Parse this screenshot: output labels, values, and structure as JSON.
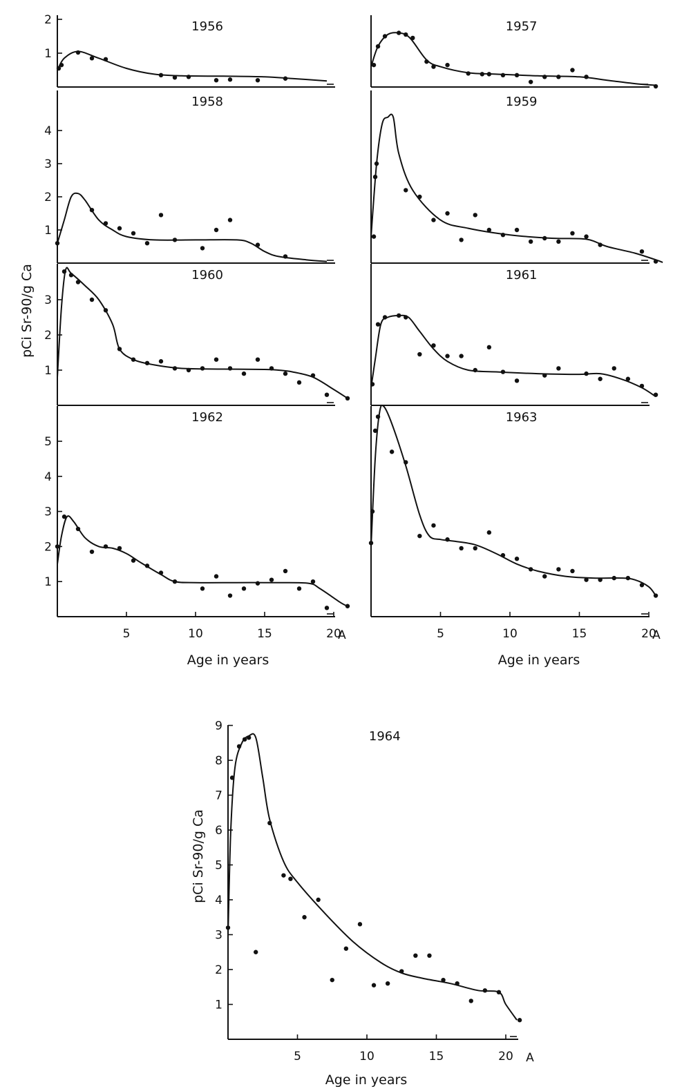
{
  "figure": {
    "ylabel": "pCi Sr-90/g Ca",
    "xlabel": "Age in years",
    "x_ticks": [
      5,
      10,
      15,
      20
    ],
    "x_end_label": "A"
  },
  "chart_data": [
    {
      "type": "line",
      "title": "1956",
      "xlim": [
        0,
        22
      ],
      "ylim": [
        0,
        2
      ],
      "y_ticks": [
        1,
        2
      ],
      "curve": [
        [
          0,
          0.5
        ],
        [
          0.5,
          0.85
        ],
        [
          1.5,
          1.05
        ],
        [
          3,
          0.85
        ],
        [
          5,
          0.55
        ],
        [
          7,
          0.38
        ],
        [
          9,
          0.33
        ],
        [
          12,
          0.32
        ],
        [
          15,
          0.3
        ],
        [
          17,
          0.25
        ],
        [
          19.5,
          0.18
        ]
      ],
      "points": [
        [
          0.1,
          0.55
        ],
        [
          0.3,
          0.65
        ],
        [
          1.5,
          1.02
        ],
        [
          2.5,
          0.85
        ],
        [
          3.5,
          0.82
        ],
        [
          7.5,
          0.35
        ],
        [
          8.5,
          0.28
        ],
        [
          9.5,
          0.3
        ],
        [
          11.5,
          0.2
        ],
        [
          12.5,
          0.22
        ],
        [
          14.5,
          0.2
        ],
        [
          16.5,
          0.25
        ]
      ]
    },
    {
      "type": "line",
      "title": "1957",
      "xlim": [
        0,
        22
      ],
      "ylim": [
        0,
        2
      ],
      "y_ticks": [],
      "curve": [
        [
          0,
          0.6
        ],
        [
          0.5,
          1.2
        ],
        [
          1.2,
          1.55
        ],
        [
          2,
          1.6
        ],
        [
          2.8,
          1.45
        ],
        [
          4,
          0.8
        ],
        [
          5,
          0.6
        ],
        [
          7,
          0.42
        ],
        [
          9,
          0.38
        ],
        [
          12,
          0.33
        ],
        [
          15,
          0.3
        ],
        [
          17,
          0.2
        ],
        [
          19,
          0.1
        ],
        [
          20.5,
          0.05
        ]
      ],
      "points": [
        [
          0.2,
          0.65
        ],
        [
          0.5,
          1.2
        ],
        [
          1,
          1.5
        ],
        [
          2,
          1.6
        ],
        [
          2.5,
          1.55
        ],
        [
          3,
          1.45
        ],
        [
          4,
          0.75
        ],
        [
          4.5,
          0.6
        ],
        [
          5.5,
          0.65
        ],
        [
          7,
          0.4
        ],
        [
          8,
          0.38
        ],
        [
          8.5,
          0.38
        ],
        [
          9.5,
          0.35
        ],
        [
          10.5,
          0.35
        ],
        [
          11.5,
          0.15
        ],
        [
          12.5,
          0.3
        ],
        [
          13.5,
          0.3
        ],
        [
          14.5,
          0.5
        ],
        [
          15.5,
          0.3
        ],
        [
          20.5,
          0.02
        ]
      ]
    },
    {
      "type": "line",
      "title": "1958",
      "xlim": [
        0,
        22
      ],
      "ylim": [
        0,
        5
      ],
      "y_ticks": [
        1,
        2,
        3,
        4
      ],
      "curve": [
        [
          0,
          0.6
        ],
        [
          0.5,
          1.3
        ],
        [
          1,
          2
        ],
        [
          1.5,
          2.1
        ],
        [
          2,
          1.9
        ],
        [
          3,
          1.3
        ],
        [
          4,
          1
        ],
        [
          5,
          0.8
        ],
        [
          7,
          0.7
        ],
        [
          10,
          0.7
        ],
        [
          13,
          0.7
        ],
        [
          14,
          0.6
        ],
        [
          15,
          0.35
        ],
        [
          16,
          0.2
        ],
        [
          18,
          0.1
        ],
        [
          19.5,
          0.05
        ]
      ],
      "points": [
        [
          0,
          0.6
        ],
        [
          2.5,
          1.6
        ],
        [
          3.5,
          1.2
        ],
        [
          4.5,
          1.05
        ],
        [
          5.5,
          0.9
        ],
        [
          6.5,
          0.6
        ],
        [
          7.5,
          1.45
        ],
        [
          8.5,
          0.7
        ],
        [
          10.5,
          0.45
        ],
        [
          11.5,
          1
        ],
        [
          12.5,
          1.3
        ],
        [
          14.5,
          0.55
        ],
        [
          16.5,
          0.2
        ]
      ]
    },
    {
      "type": "line",
      "title": "1959",
      "xlim": [
        0,
        22
      ],
      "ylim": [
        0,
        5
      ],
      "y_ticks": [],
      "curve": [
        [
          0,
          0.8
        ],
        [
          0.4,
          3
        ],
        [
          0.8,
          4.2
        ],
        [
          1.2,
          4.4
        ],
        [
          1.6,
          4.4
        ],
        [
          2,
          3.3
        ],
        [
          3,
          2.2
        ],
        [
          5,
          1.3
        ],
        [
          7,
          1.05
        ],
        [
          10,
          0.85
        ],
        [
          13,
          0.75
        ],
        [
          15.5,
          0.72
        ],
        [
          17,
          0.5
        ],
        [
          19,
          0.3
        ],
        [
          20.5,
          0.1
        ],
        [
          21,
          0.02
        ]
      ],
      "points": [
        [
          0.2,
          0.8
        ],
        [
          0.3,
          2.6
        ],
        [
          0.4,
          3
        ],
        [
          2.5,
          2.2
        ],
        [
          3.5,
          2
        ],
        [
          4.5,
          1.3
        ],
        [
          5.5,
          1.5
        ],
        [
          6.5,
          0.7
        ],
        [
          7.5,
          1.45
        ],
        [
          8.5,
          1
        ],
        [
          9.5,
          0.85
        ],
        [
          10.5,
          1
        ],
        [
          11.5,
          0.65
        ],
        [
          12.5,
          0.75
        ],
        [
          13.5,
          0.65
        ],
        [
          14.5,
          0.9
        ],
        [
          15.5,
          0.8
        ],
        [
          16.5,
          0.55
        ],
        [
          19.5,
          0.35
        ],
        [
          20.5,
          0.05
        ]
      ]
    },
    {
      "type": "line",
      "title": "1960",
      "xlim": [
        0,
        22
      ],
      "ylim": [
        0,
        4
      ],
      "y_ticks": [
        1,
        2,
        3
      ],
      "curve": [
        [
          0,
          0.8
        ],
        [
          0.3,
          2.8
        ],
        [
          0.6,
          3.85
        ],
        [
          1,
          3.75
        ],
        [
          2,
          3.4
        ],
        [
          3,
          3
        ],
        [
          4,
          2.3
        ],
        [
          4.5,
          1.6
        ],
        [
          5.5,
          1.3
        ],
        [
          7,
          1.15
        ],
        [
          9,
          1.05
        ],
        [
          12,
          1.03
        ],
        [
          15,
          1.02
        ],
        [
          16,
          1
        ],
        [
          17,
          0.95
        ],
        [
          18.5,
          0.8
        ],
        [
          20,
          0.45
        ],
        [
          21,
          0.2
        ]
      ],
      "points": [
        [
          0.5,
          3.8
        ],
        [
          1,
          3.7
        ],
        [
          1.5,
          3.5
        ],
        [
          2.5,
          3
        ],
        [
          3.5,
          2.7
        ],
        [
          4.5,
          1.6
        ],
        [
          5.5,
          1.3
        ],
        [
          6.5,
          1.2
        ],
        [
          7.5,
          1.25
        ],
        [
          8.5,
          1.05
        ],
        [
          9.5,
          1
        ],
        [
          10.5,
          1.05
        ],
        [
          11.5,
          1.3
        ],
        [
          12.5,
          1.05
        ],
        [
          13.5,
          0.9
        ],
        [
          14.5,
          1.3
        ],
        [
          15.5,
          1.05
        ],
        [
          16.5,
          0.9
        ],
        [
          17.5,
          0.65
        ],
        [
          18.5,
          0.85
        ],
        [
          19.5,
          0.3
        ],
        [
          21,
          0.2
        ]
      ]
    },
    {
      "type": "line",
      "title": "1961",
      "xlim": [
        0,
        22
      ],
      "ylim": [
        0,
        4
      ],
      "y_ticks": [],
      "curve": [
        [
          0,
          0.5
        ],
        [
          0.3,
          1.3
        ],
        [
          0.7,
          2.3
        ],
        [
          1.2,
          2.5
        ],
        [
          2,
          2.55
        ],
        [
          2.7,
          2.5
        ],
        [
          3.5,
          2.1
        ],
        [
          4.5,
          1.6
        ],
        [
          5.5,
          1.25
        ],
        [
          7,
          1
        ],
        [
          9,
          0.95
        ],
        [
          12,
          0.9
        ],
        [
          15,
          0.88
        ],
        [
          16.5,
          0.9
        ],
        [
          18,
          0.75
        ],
        [
          19.5,
          0.5
        ],
        [
          20.5,
          0.25
        ]
      ],
      "points": [
        [
          0.1,
          0.6
        ],
        [
          0.5,
          2.3
        ],
        [
          1,
          2.5
        ],
        [
          2,
          2.55
        ],
        [
          2.5,
          2.5
        ],
        [
          3.5,
          1.45
        ],
        [
          4.5,
          1.7
        ],
        [
          5.5,
          1.4
        ],
        [
          6.5,
          1.4
        ],
        [
          7.5,
          1
        ],
        [
          8.5,
          1.65
        ],
        [
          9.5,
          0.95
        ],
        [
          10.5,
          0.7
        ],
        [
          12.5,
          0.85
        ],
        [
          13.5,
          1.05
        ],
        [
          15.5,
          0.9
        ],
        [
          16.5,
          0.75
        ],
        [
          17.5,
          1.05
        ],
        [
          18.5,
          0.75
        ],
        [
          19.5,
          0.55
        ],
        [
          20.5,
          0.3
        ]
      ]
    },
    {
      "type": "line",
      "title": "1962",
      "xlim": [
        0,
        22
      ],
      "ylim": [
        0,
        6
      ],
      "y_ticks": [
        1,
        2,
        3,
        4,
        5
      ],
      "curve": [
        [
          0,
          1.5
        ],
        [
          0.3,
          2.3
        ],
        [
          0.7,
          2.85
        ],
        [
          1.2,
          2.7
        ],
        [
          2,
          2.25
        ],
        [
          3,
          2
        ],
        [
          4,
          1.95
        ],
        [
          5,
          1.8
        ],
        [
          6,
          1.55
        ],
        [
          7.5,
          1.2
        ],
        [
          8.5,
          1
        ],
        [
          10,
          0.97
        ],
        [
          13,
          0.97
        ],
        [
          16,
          0.97
        ],
        [
          18.2,
          0.95
        ],
        [
          19,
          0.8
        ],
        [
          20.5,
          0.4
        ],
        [
          21,
          0.3
        ]
      ],
      "points": [
        [
          0,
          2
        ],
        [
          0.5,
          2.85
        ],
        [
          1.5,
          2.5
        ],
        [
          2.5,
          1.85
        ],
        [
          3.5,
          2
        ],
        [
          4.5,
          1.95
        ],
        [
          5.5,
          1.6
        ],
        [
          6.5,
          1.45
        ],
        [
          7.5,
          1.25
        ],
        [
          8.5,
          1
        ],
        [
          10.5,
          0.8
        ],
        [
          11.5,
          1.15
        ],
        [
          12.5,
          0.6
        ],
        [
          13.5,
          0.8
        ],
        [
          14.5,
          0.95
        ],
        [
          15.5,
          1.05
        ],
        [
          16.5,
          1.3
        ],
        [
          17.5,
          0.8
        ],
        [
          18.5,
          1
        ],
        [
          19.5,
          0.25
        ],
        [
          21,
          0.3
        ]
      ]
    },
    {
      "type": "line",
      "title": "1963",
      "xlim": [
        0,
        22
      ],
      "ylim": [
        0,
        6
      ],
      "y_ticks": [],
      "curve": [
        [
          0,
          2
        ],
        [
          0.3,
          4.5
        ],
        [
          0.6,
          5.8
        ],
        [
          0.9,
          6
        ],
        [
          1.5,
          5.5
        ],
        [
          2.5,
          4.3
        ],
        [
          3.5,
          2.9
        ],
        [
          4.2,
          2.3
        ],
        [
          5,
          2.2
        ],
        [
          6,
          2.15
        ],
        [
          7.5,
          2.05
        ],
        [
          9,
          1.8
        ],
        [
          10.5,
          1.5
        ],
        [
          12,
          1.3
        ],
        [
          14,
          1.15
        ],
        [
          16,
          1.1
        ],
        [
          18,
          1.1
        ],
        [
          19,
          1.05
        ],
        [
          20,
          0.85
        ],
        [
          20.5,
          0.6
        ]
      ],
      "points": [
        [
          0,
          2.1
        ],
        [
          0.1,
          3
        ],
        [
          0.3,
          5.3
        ],
        [
          0.5,
          5.7
        ],
        [
          1.5,
          4.7
        ],
        [
          2.5,
          4.4
        ],
        [
          3.5,
          2.3
        ],
        [
          4.5,
          2.6
        ],
        [
          5.5,
          2.2
        ],
        [
          6.5,
          1.95
        ],
        [
          7.5,
          1.95
        ],
        [
          8.5,
          2.4
        ],
        [
          9.5,
          1.75
        ],
        [
          10.5,
          1.65
        ],
        [
          11.5,
          1.35
        ],
        [
          12.5,
          1.15
        ],
        [
          13.5,
          1.35
        ],
        [
          14.5,
          1.3
        ],
        [
          15.5,
          1.05
        ],
        [
          16.5,
          1.05
        ],
        [
          17.5,
          1.1
        ],
        [
          18.5,
          1.1
        ],
        [
          19.5,
          0.9
        ],
        [
          20.5,
          0.6
        ]
      ]
    },
    {
      "type": "line",
      "title": "1964",
      "xlim": [
        0,
        22
      ],
      "ylim": [
        0,
        9
      ],
      "y_ticks": [
        1,
        2,
        3,
        4,
        5,
        6,
        7,
        8,
        9
      ],
      "curve": [
        [
          0,
          3
        ],
        [
          0.2,
          6
        ],
        [
          0.5,
          7.8
        ],
        [
          1,
          8.5
        ],
        [
          1.5,
          8.7
        ],
        [
          2,
          8.65
        ],
        [
          2.5,
          7.5
        ],
        [
          3,
          6.3
        ],
        [
          4,
          5.1
        ],
        [
          5,
          4.5
        ],
        [
          7,
          3.6
        ],
        [
          9,
          2.8
        ],
        [
          11,
          2.2
        ],
        [
          12.5,
          1.9
        ],
        [
          14,
          1.75
        ],
        [
          16,
          1.6
        ],
        [
          18,
          1.4
        ],
        [
          19.5,
          1.35
        ],
        [
          20,
          1
        ],
        [
          20.8,
          0.55
        ]
      ],
      "points": [
        [
          0,
          3.2
        ],
        [
          0.3,
          7.5
        ],
        [
          0.8,
          8.4
        ],
        [
          1.2,
          8.6
        ],
        [
          1.5,
          8.65
        ],
        [
          2,
          2.5
        ],
        [
          3,
          6.2
        ],
        [
          4,
          4.7
        ],
        [
          4.5,
          4.6
        ],
        [
          5.5,
          3.5
        ],
        [
          6.5,
          4
        ],
        [
          7.5,
          1.7
        ],
        [
          8.5,
          2.6
        ],
        [
          9.5,
          3.3
        ],
        [
          10.5,
          1.55
        ],
        [
          11.5,
          1.6
        ],
        [
          12.5,
          1.95
        ],
        [
          13.5,
          2.4
        ],
        [
          14.5,
          2.4
        ],
        [
          15.5,
          1.7
        ],
        [
          16.5,
          1.6
        ],
        [
          17.5,
          1.1
        ],
        [
          18.5,
          1.4
        ],
        [
          19.5,
          1.35
        ],
        [
          21,
          0.55
        ]
      ]
    }
  ]
}
